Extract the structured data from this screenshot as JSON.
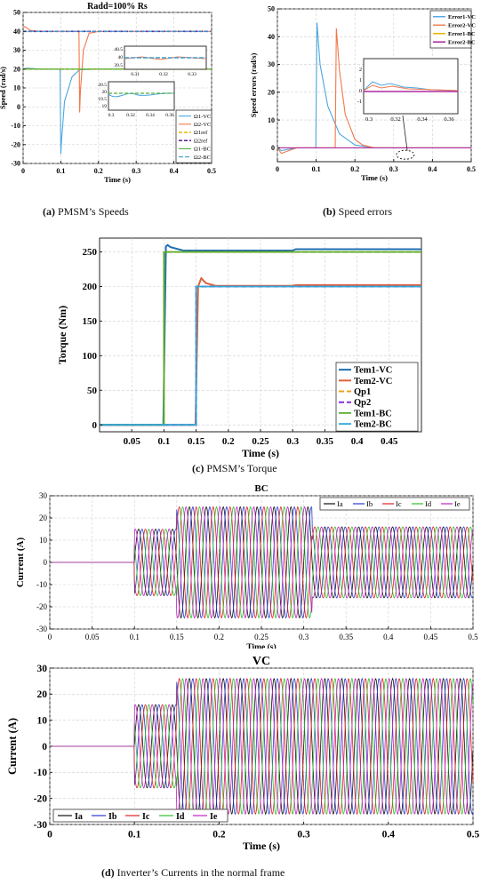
{
  "figure_a": {
    "caption_letter": "(a)",
    "caption_text": " PMSM’s Speeds",
    "title": "Radd=100% Rs"
  },
  "figure_b": {
    "caption_letter": "(b)",
    "caption_text": " Speed errors"
  },
  "figure_c": {
    "caption_letter": "(c)",
    "caption_text": " PMSM’s Torque"
  },
  "figure_d": {
    "caption_letter": "(d)",
    "caption_text": " Inverter’s Currents in the normal frame"
  },
  "chart_data": [
    {
      "id": "a",
      "type": "line",
      "title": "Radd=100% Rs",
      "xlabel": "Time (s)",
      "ylabel": "Speed (rad/s)",
      "xlim": [
        0,
        0.5
      ],
      "ylim": [
        -30,
        50
      ],
      "xticks": [
        "0",
        "0.1",
        "0.2",
        "0.3",
        "0.4",
        "0.5"
      ],
      "yticks": [
        "50",
        "40",
        "30",
        "20",
        "10",
        "0",
        "-10",
        "-20",
        "-30"
      ],
      "legend_position": "bottom-right",
      "series": [
        {
          "name": "Ω1-VC",
          "color": "#4da6e0",
          "x": [
            0,
            0.01,
            0.05,
            0.098,
            0.1,
            0.102,
            0.11,
            0.13,
            0.15,
            0.2,
            0.5
          ],
          "y": [
            20,
            20.5,
            20,
            20,
            -25,
            -18,
            3,
            16,
            19.7,
            20,
            20
          ]
        },
        {
          "name": "Ω2-VC",
          "color": "#f2784b",
          "x": [
            0,
            0.005,
            0.02,
            0.05,
            0.1,
            0.148,
            0.15,
            0.152,
            0.16,
            0.175,
            0.2,
            0.5
          ],
          "y": [
            42,
            42.5,
            40.4,
            40,
            40,
            40,
            -3,
            8,
            30,
            39,
            40,
            40
          ]
        },
        {
          "name": "Ω1ref",
          "color": "#e6b800",
          "x": [
            0,
            0.5
          ],
          "y": [
            20,
            20
          ]
        },
        {
          "name": "Ω2ref",
          "color": "#6a2aa0",
          "x": [
            0,
            0.5
          ],
          "y": [
            40,
            40
          ]
        },
        {
          "name": "Ω1-BC",
          "color": "#4caf3d",
          "x": [
            0,
            0.5
          ],
          "y": [
            20,
            20
          ]
        },
        {
          "name": "Ω2-BC",
          "color": "#3d9fd0",
          "x": [
            0,
            0.5
          ],
          "y": [
            40,
            40
          ]
        }
      ],
      "insets": [
        {
          "xticks": [
            "0.31",
            "0.32",
            "0.33"
          ],
          "yticks": [
            "40.5",
            "40",
            "39.5"
          ]
        },
        {
          "xticks": [
            "0.3",
            "0.32",
            "0.34",
            "0.36"
          ],
          "yticks": [
            "20.5",
            "20",
            "19.5",
            "19"
          ]
        }
      ]
    },
    {
      "id": "b",
      "type": "line",
      "xlabel": "Time (s)",
      "ylabel": "Speed errors (rad/s)",
      "xlim": [
        0,
        0.5
      ],
      "ylim": [
        -5,
        50
      ],
      "xticks": [
        "0",
        "0.1",
        "0.2",
        "0.3",
        "0.4",
        "0.5"
      ],
      "yticks": [
        "50",
        "40",
        "30",
        "20",
        "10",
        "0"
      ],
      "legend_position": "top-right",
      "series": [
        {
          "name": "Error1-VC",
          "color": "#4da6e0",
          "x": [
            0,
            0.01,
            0.05,
            0.099,
            0.102,
            0.11,
            0.13,
            0.16,
            0.2,
            0.25,
            0.5
          ],
          "y": [
            0,
            -1,
            0,
            0,
            45,
            30,
            15,
            5,
            1,
            0,
            0
          ]
        },
        {
          "name": "Error2-VC",
          "color": "#f2784b",
          "x": [
            0,
            0.01,
            0.05,
            0.149,
            0.152,
            0.16,
            0.175,
            0.2,
            0.22,
            0.25,
            0.5
          ],
          "y": [
            0,
            -2,
            0,
            0,
            43,
            28,
            12,
            3,
            1,
            0,
            0
          ]
        },
        {
          "name": "Error1-BC",
          "color": "#e6b800",
          "x": [
            0,
            0.5
          ],
          "y": [
            0,
            0
          ]
        },
        {
          "name": "Error2-BC",
          "color": "#b02aa0",
          "x": [
            0,
            0.5
          ],
          "y": [
            0,
            0
          ]
        }
      ],
      "inset": {
        "xticks": [
          "0.3",
          "0.32",
          "0.34",
          "0.36"
        ],
        "yticks": [
          "2",
          "1",
          "0",
          "-1"
        ]
      }
    },
    {
      "id": "c",
      "type": "line",
      "xlabel": "Time (s)",
      "ylabel": "Torque (Nm)",
      "xlim": [
        0,
        0.5
      ],
      "ylim": [
        -10,
        270
      ],
      "xticks": [
        "0.05",
        "0.1",
        "0.15",
        "0.2",
        "0.25",
        "0.3",
        "0.35",
        "0.4",
        "0.45"
      ],
      "yticks": [
        "250",
        "200",
        "150",
        "100",
        "50",
        "0"
      ],
      "legend_position": "bottom-right",
      "series": [
        {
          "name": "Tem1-VC",
          "color": "#1f6fb0",
          "x": [
            0,
            0.099,
            0.103,
            0.106,
            0.11,
            0.13,
            0.3,
            0.305,
            0.5
          ],
          "y": [
            0,
            0,
            258,
            260,
            257,
            252,
            252,
            254,
            254
          ]
        },
        {
          "name": "Tem2-VC",
          "color": "#e0603a",
          "x": [
            0,
            0.149,
            0.153,
            0.158,
            0.165,
            0.18,
            0.3,
            0.305,
            0.5
          ],
          "y": [
            0,
            0,
            200,
            212,
            205,
            201,
            201,
            202,
            202
          ]
        },
        {
          "name": "Qp1",
          "color": "#f0a020",
          "x": [
            0,
            0.1,
            0.1,
            0.5
          ],
          "y": [
            0,
            0,
            250,
            250
          ]
        },
        {
          "name": "Qp2",
          "color": "#8a2be2",
          "x": [
            0,
            0.15,
            0.15,
            0.5
          ],
          "y": [
            0,
            0,
            200,
            200
          ]
        },
        {
          "name": "Tem1-BC",
          "color": "#5cb030",
          "x": [
            0,
            0.1,
            0.1,
            0.5
          ],
          "y": [
            0,
            0,
            250,
            250
          ]
        },
        {
          "name": "Tem2-BC",
          "color": "#2fa8d8",
          "x": [
            0,
            0.15,
            0.15,
            0.5
          ],
          "y": [
            0,
            0,
            200,
            200
          ]
        }
      ]
    },
    {
      "id": "d1",
      "type": "line",
      "title": "BC",
      "xlabel": "Time (s)",
      "ylabel": "Current (A)",
      "xlim": [
        0,
        0.5
      ],
      "ylim": [
        -30,
        30
      ],
      "xticks": [
        "0",
        "0.05",
        "0.1",
        "0.15",
        "0.2",
        "0.25",
        "0.3",
        "0.35",
        "0.4",
        "0.45",
        "0.5"
      ],
      "yticks": [
        "30",
        "20",
        "10",
        "0",
        "-10",
        "-20",
        "-30"
      ],
      "legend_position": "top-right",
      "series": [
        {
          "name": "Ia",
          "color": "#111111"
        },
        {
          "name": "Ib",
          "color": "#2a3ad0"
        },
        {
          "name": "Ic",
          "color": "#e02020"
        },
        {
          "name": "Id",
          "color": "#2ec02e"
        },
        {
          "name": "Ie",
          "color": "#c020c0"
        }
      ],
      "amplitude_segments": [
        {
          "t0": 0,
          "t1": 0.1,
          "amp": 0
        },
        {
          "t0": 0.1,
          "t1": 0.15,
          "amp": 15
        },
        {
          "t0": 0.15,
          "t1": 0.31,
          "amp": 25
        },
        {
          "t0": 0.31,
          "t1": 0.5,
          "amp": 16
        }
      ]
    },
    {
      "id": "d2",
      "type": "line",
      "title": "VC",
      "xlabel": "Time (s)",
      "ylabel": "Current (A)",
      "xlim": [
        0,
        0.5
      ],
      "ylim": [
        -30,
        30
      ],
      "xticks": [
        "0",
        "0.1",
        "0.2",
        "0.3",
        "0.4",
        "0.5"
      ],
      "yticks": [
        "30",
        "20",
        "10",
        "0",
        "-10",
        "-20",
        "-30"
      ],
      "legend_position": "bottom",
      "series": [
        {
          "name": "Ia",
          "color": "#111111"
        },
        {
          "name": "Ib",
          "color": "#2a3ad0"
        },
        {
          "name": "Ic",
          "color": "#e02020"
        },
        {
          "name": "Id",
          "color": "#2ec02e"
        },
        {
          "name": "Ie",
          "color": "#c020c0"
        }
      ],
      "amplitude_segments": [
        {
          "t0": 0,
          "t1": 0.1,
          "amp": 0
        },
        {
          "t0": 0.1,
          "t1": 0.15,
          "amp": 16
        },
        {
          "t0": 0.15,
          "t1": 0.2,
          "amp": 26
        },
        {
          "t0": 0.2,
          "t1": 0.5,
          "amp": 26
        }
      ]
    }
  ]
}
